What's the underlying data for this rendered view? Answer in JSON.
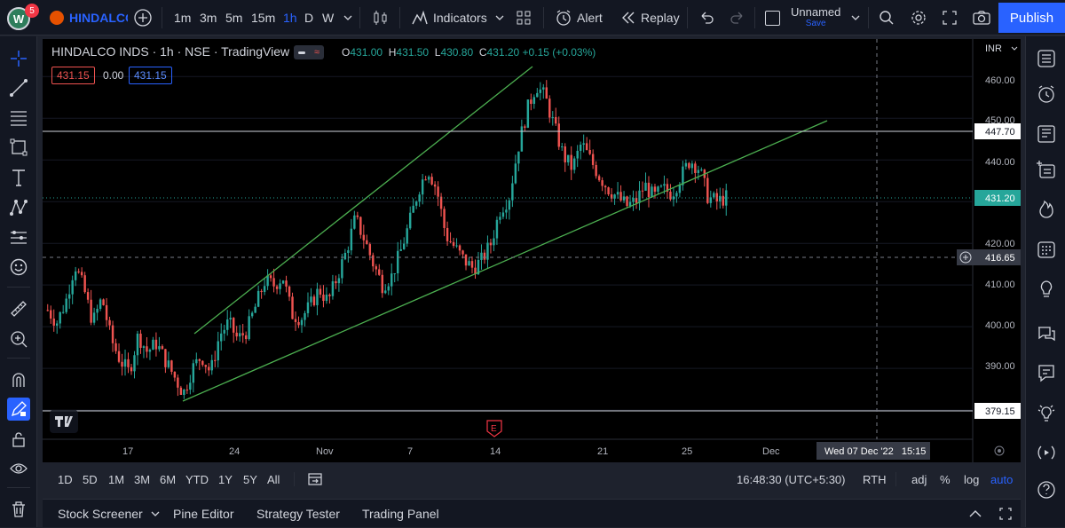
{
  "toolbar": {
    "avatar_letter": "W",
    "avatar_badge": "5",
    "symbol": "HINDALCO",
    "intervals": [
      "1m",
      "3m",
      "5m",
      "15m",
      "1h",
      "D",
      "W"
    ],
    "active_interval": "1h",
    "indicators_label": "Indicators",
    "alert_label": "Alert",
    "replay_label": "Replay",
    "layout_name": "Unnamed",
    "layout_status": "Save",
    "publish_label": "Publish"
  },
  "legend": {
    "title": "HINDALCO INDS · 1h · NSE · TradingView",
    "open_key": "O",
    "open": "431.00",
    "high_key": "H",
    "high": "431.50",
    "low_key": "L",
    "low": "430.80",
    "close_key": "C",
    "close": "431.20",
    "change": "+0.15 (+0.03%)",
    "bid": "431.15",
    "spread": "0.00",
    "ask": "431.15"
  },
  "price_axis": {
    "currency": "INR",
    "ticks": [
      "460.00",
      "450.00",
      "440.00",
      "420.00",
      "410.00",
      "400.00",
      "390.00"
    ],
    "line_label_upper": "447.70",
    "last_price": "431.20",
    "crosshair_price": "416.65",
    "line_label_lower": "379.15"
  },
  "time_axis": {
    "ticks": [
      "17",
      "24",
      "Nov",
      "7",
      "14",
      "21",
      "25",
      "Dec"
    ],
    "crosshair_time": "Wed 07 Dec '22   15:15",
    "earnings_marker": "E"
  },
  "ranges": [
    "1D",
    "5D",
    "1M",
    "3M",
    "6M",
    "YTD",
    "1Y",
    "5Y",
    "All"
  ],
  "status": {
    "clock": "16:48:30 (UTC+5:30)",
    "session": "RTH",
    "adj": "adj",
    "percent": "%",
    "log": "log",
    "auto": "auto"
  },
  "footer_tabs": [
    "Stock Screener",
    "Pine Editor",
    "Strategy Tester",
    "Trading Panel"
  ],
  "colors": {
    "up": "#26a69a",
    "down": "#ef5350",
    "trendline": "#4caf50",
    "accent": "#2962ff"
  },
  "chart_data": {
    "type": "candlestick",
    "title": "HINDALCO INDS · 1h · NSE · TradingView",
    "ylim": [
      373,
      469
    ],
    "x_ticks": [
      "17",
      "24",
      "Nov",
      "7",
      "14",
      "21",
      "25",
      "Dec"
    ],
    "series": [
      {
        "name": "HINDALCO",
        "close_path": [
          404,
          401,
          406,
          415,
          409,
          401,
          407,
          397,
          392,
          389,
          398,
          394,
          396,
          392,
          388,
          384,
          390,
          393,
          389,
          398,
          401,
          397,
          399,
          405,
          411,
          410,
          412,
          403,
          402,
          405,
          409,
          406,
          412,
          418,
          426,
          421,
          415,
          410,
          412,
          418,
          425,
          433,
          438,
          433,
          422,
          419,
          416,
          414,
          416,
          420,
          428,
          431,
          443,
          452,
          458,
          455,
          448,
          441,
          438,
          444,
          440,
          436,
          433,
          431,
          429,
          430,
          434,
          431,
          433,
          432,
          436,
          440,
          438,
          431,
          430,
          431
        ]
      }
    ],
    "horizontal_lines": [
      447.7,
      379.15
    ],
    "last_price": 431.2
  }
}
